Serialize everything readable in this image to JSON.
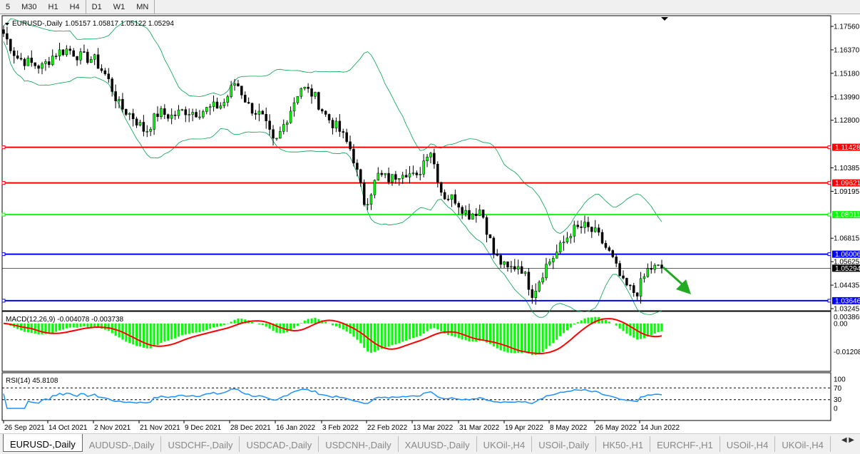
{
  "timeframes": [
    "5",
    "M30",
    "H1",
    "H4",
    "D1",
    "W1",
    "MN"
  ],
  "active_timeframe": "D1",
  "chart": {
    "title": "EURUSD-,Daily",
    "ohlc": "1.05157 1.05817 1.05122 1.05294",
    "price_ticks": [
      "1.17560",
      "1.16370",
      "1.15180",
      "1.13990",
      "1.12800",
      "1.10385",
      "1.09195",
      "1.06815",
      "1.05625",
      "1.04435",
      "1.03245"
    ],
    "levels": [
      {
        "price": "1.11428",
        "color": "#ff0000"
      },
      {
        "price": "1.09621",
        "color": "#ff0000"
      },
      {
        "price": "1.08011",
        "color": "#00ff00"
      },
      {
        "price": "1.06006",
        "color": "#0000ff"
      },
      {
        "price": "1.03646",
        "color": "#0000ff"
      }
    ],
    "current_price": "1.05294",
    "closes": [
      1.172,
      1.16,
      1.157,
      1.155,
      1.162,
      1.164,
      1.16,
      1.159,
      1.15,
      1.135,
      1.13,
      1.122,
      1.132,
      1.13,
      1.133,
      1.132,
      1.134,
      1.136,
      1.148,
      1.135,
      1.13,
      1.115,
      1.13,
      1.145,
      1.141,
      1.13,
      1.123,
      1.112,
      1.085,
      1.1,
      1.098,
      1.103,
      1.098,
      1.115,
      1.09,
      1.088,
      1.08,
      1.083,
      1.06,
      1.052,
      1.055,
      1.04,
      1.054,
      1.062,
      1.072,
      1.074,
      1.07,
      1.06,
      1.045,
      1.04,
      1.053,
      1.05294
    ],
    "bull_color": "#00ff00",
    "bear_color": "#000000",
    "band_color": "#00a050",
    "arrow_color": "#22aa22",
    "arrow": "down-right arrow"
  },
  "macd": {
    "label": "MACD(12,26,9) -0.004078 -0.003738",
    "ticks": [
      "0.003865",
      "0.00",
      "-0.01208"
    ],
    "hist_color": "#00ff00",
    "signal_color": "#ff0000"
  },
  "rsi": {
    "label": "RSI(14) 45.8108",
    "ticks": [
      "100",
      "70",
      "30",
      "0"
    ],
    "line_color": "#1e90ff"
  },
  "dates": [
    "26 Sep 2021",
    "14 Oct 2021",
    "2 Nov 2021",
    "21 Nov 2021",
    "9 Dec 2021",
    "28 Dec 2021",
    "16 Jan 2022",
    "3 Feb 2022",
    "22 Feb 2022",
    "13 Mar 2022",
    "31 Mar 2022",
    "19 Apr 2022",
    "8 May 2022",
    "26 May 2022",
    "14 Jun 2022"
  ],
  "tabs": [
    "EURUSD-,Daily",
    "AUDUSD-,Daily",
    "USDCHF-,Daily",
    "USDCAD-,Daily",
    "USDCNH-,Daily",
    "XAUUSD-,Daily",
    "UKOil-,H4",
    "USOil-,Daily",
    "HK50-,H1",
    "EURCHF-,H1",
    "USOil-,H4",
    "UKOil-,H4"
  ]
}
